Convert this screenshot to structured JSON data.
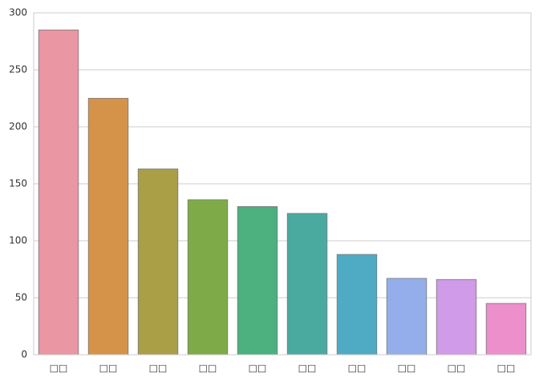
{
  "chart_data": {
    "type": "bar",
    "categories": [
      "□□",
      "□□",
      "□□",
      "□□",
      "□□",
      "□□",
      "□□",
      "□□",
      "□□",
      "□□"
    ],
    "values": [
      285,
      225,
      163,
      136,
      130,
      124,
      88,
      67,
      66,
      45
    ],
    "colors": [
      "#ea96a3",
      "#d5934a",
      "#aa9e47",
      "#7eab47",
      "#4cb07f",
      "#4baaa0",
      "#4fabc4",
      "#93aeea",
      "#d09be8",
      "#ec8fca"
    ],
    "ylim": [
      0,
      300
    ],
    "yticks": [
      0,
      50,
      100,
      150,
      200,
      250,
      300
    ],
    "grid": true
  }
}
